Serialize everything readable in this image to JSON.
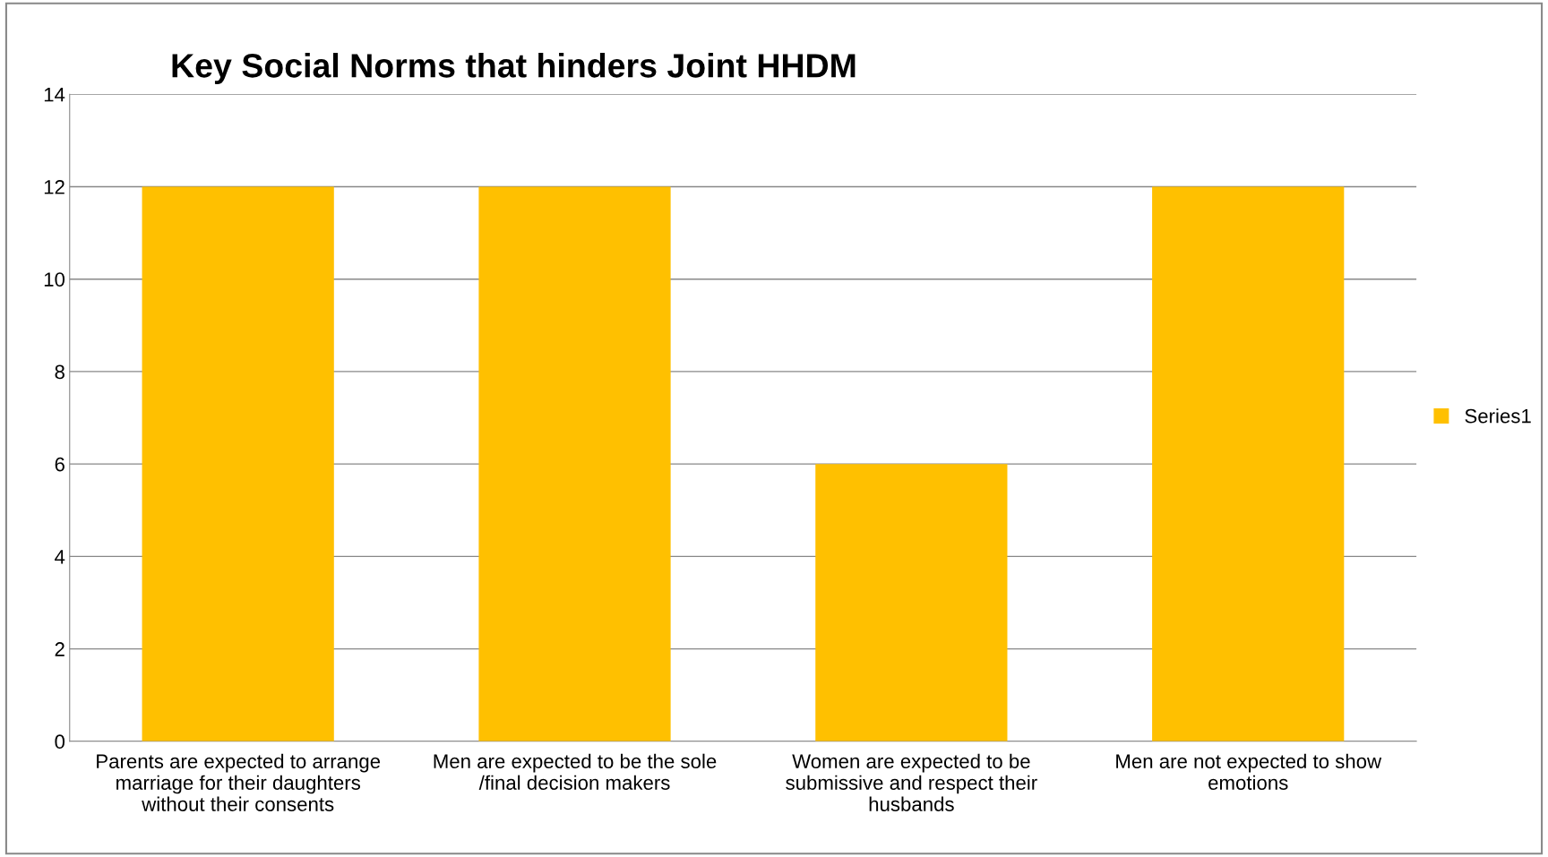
{
  "chart_data": {
    "type": "bar",
    "title": "Key Social Norms that hinders Joint HHDM",
    "categories": [
      "Parents are expected to arrange marriage for their daughters without their consents",
      "Men are expected to be the sole /final decision makers",
      "Women are expected to be submissive and respect their husbands",
      "Men are not expected to show emotions"
    ],
    "series": [
      {
        "name": "Series1",
        "color": "#ffc000",
        "values": [
          12,
          12,
          6,
          12
        ]
      }
    ],
    "ylim": [
      0,
      14
    ],
    "yticks": [
      0,
      2,
      4,
      6,
      8,
      10,
      12,
      14
    ],
    "grid": "y",
    "legend": "right"
  }
}
